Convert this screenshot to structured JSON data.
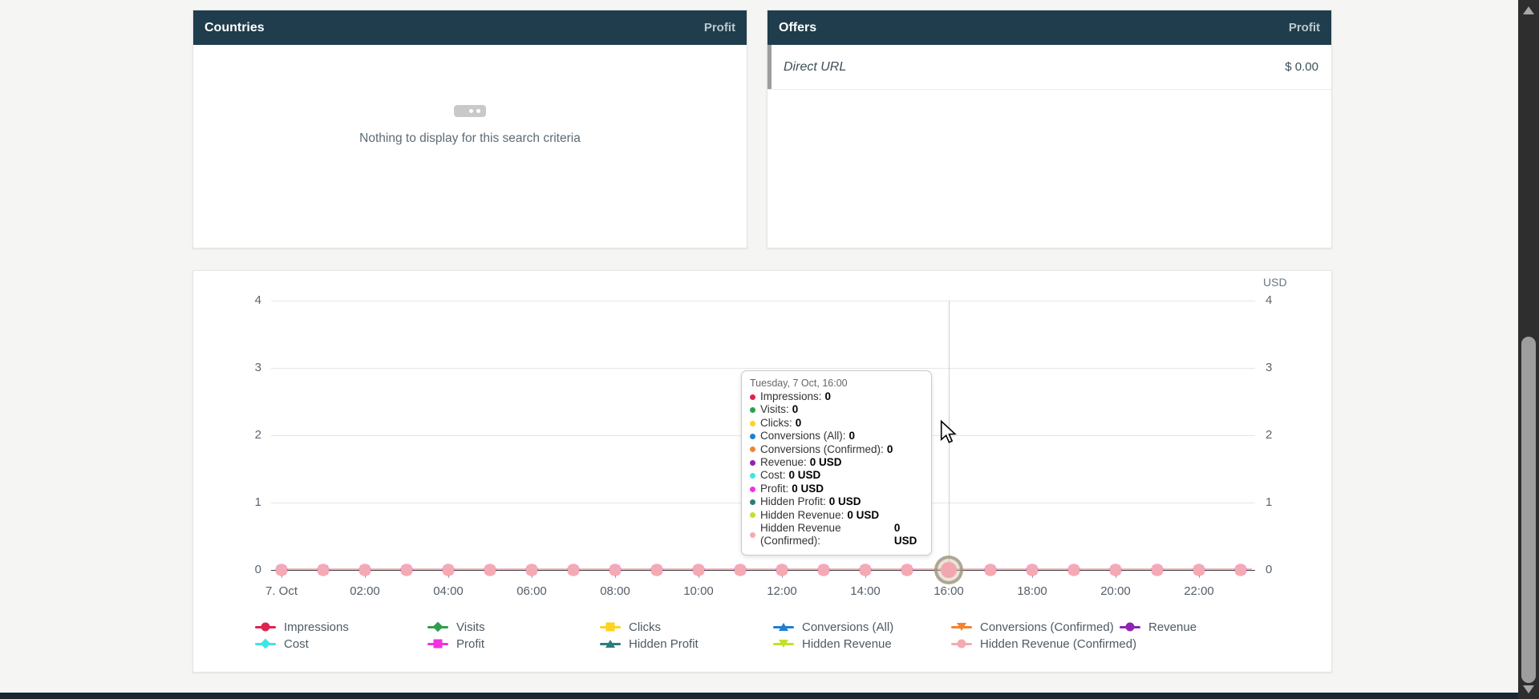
{
  "app": {
    "page_bg": "#f5f5f4",
    "panel_header_bg": "#1f3d4c",
    "bottom_bar_color": "#1c2531"
  },
  "countries_panel": {
    "title": "Countries",
    "metric_label": "Profit",
    "empty_message": "Nothing to display for this search criteria"
  },
  "offers_panel": {
    "title": "Offers",
    "metric_label": "Profit",
    "rows": [
      {
        "name": "Direct URL",
        "value": "$ 0.00"
      }
    ]
  },
  "tooltip": {
    "title": "Tuesday, 7 Oct, 16:00",
    "items": [
      {
        "label": "Impressions",
        "value": "0"
      },
      {
        "label": "Visits",
        "value": "0"
      },
      {
        "label": "Clicks",
        "value": "0"
      },
      {
        "label": "Conversions (All)",
        "value": "0"
      },
      {
        "label": "Conversions (Confirmed)",
        "value": "0"
      },
      {
        "label": "Revenue",
        "value": "0 USD"
      },
      {
        "label": "Cost",
        "value": "0 USD"
      },
      {
        "label": "Profit",
        "value": "0 USD"
      },
      {
        "label": "Hidden Profit",
        "value": "0 USD"
      },
      {
        "label": "Hidden Revenue",
        "value": "0 USD"
      },
      {
        "label": "Hidden Revenue (Confirmed)",
        "value": "0 USD"
      }
    ]
  },
  "chart_data": {
    "type": "line",
    "title": "",
    "unit_label": "USD",
    "xlabel": "",
    "ylabel": "",
    "ylim": [
      0,
      4
    ],
    "y_ticks": [
      4,
      3,
      2,
      1,
      0
    ],
    "grid": true,
    "legend_position": "bottom",
    "x_tick_labels": [
      "7. Oct",
      "02:00",
      "04:00",
      "06:00",
      "08:00",
      "10:00",
      "12:00",
      "14:00",
      "16:00",
      "18:00",
      "20:00",
      "22:00"
    ],
    "x_points": [
      "00:00",
      "01:00",
      "02:00",
      "03:00",
      "04:00",
      "05:00",
      "06:00",
      "07:00",
      "08:00",
      "09:00",
      "10:00",
      "11:00",
      "12:00",
      "13:00",
      "14:00",
      "15:00",
      "16:00",
      "17:00",
      "18:00",
      "19:00",
      "20:00",
      "21:00",
      "22:00",
      "23:00"
    ],
    "hover_point": {
      "index": 16,
      "label": "16:00",
      "date": "Tuesday, 7 Oct"
    },
    "series": [
      {
        "name": "Impressions",
        "color": "#e0234e",
        "marker": "circle",
        "values": [
          0,
          0,
          0,
          0,
          0,
          0,
          0,
          0,
          0,
          0,
          0,
          0,
          0,
          0,
          0,
          0,
          0,
          0,
          0,
          0,
          0,
          0,
          0,
          0
        ]
      },
      {
        "name": "Visits",
        "color": "#2f9e4f",
        "marker": "diamond",
        "values": [
          0,
          0,
          0,
          0,
          0,
          0,
          0,
          0,
          0,
          0,
          0,
          0,
          0,
          0,
          0,
          0,
          0,
          0,
          0,
          0,
          0,
          0,
          0,
          0
        ]
      },
      {
        "name": "Clicks",
        "color": "#ffd21e",
        "marker": "square",
        "values": [
          0,
          0,
          0,
          0,
          0,
          0,
          0,
          0,
          0,
          0,
          0,
          0,
          0,
          0,
          0,
          0,
          0,
          0,
          0,
          0,
          0,
          0,
          0,
          0
        ]
      },
      {
        "name": "Conversions (All)",
        "color": "#1e7fd4",
        "marker": "triangle-up",
        "values": [
          0,
          0,
          0,
          0,
          0,
          0,
          0,
          0,
          0,
          0,
          0,
          0,
          0,
          0,
          0,
          0,
          0,
          0,
          0,
          0,
          0,
          0,
          0,
          0
        ]
      },
      {
        "name": "Conversions (Confirmed)",
        "color": "#f58231",
        "marker": "triangle-down",
        "values": [
          0,
          0,
          0,
          0,
          0,
          0,
          0,
          0,
          0,
          0,
          0,
          0,
          0,
          0,
          0,
          0,
          0,
          0,
          0,
          0,
          0,
          0,
          0,
          0
        ]
      },
      {
        "name": "Revenue",
        "color": "#8f23b3",
        "marker": "circle",
        "values": [
          0,
          0,
          0,
          0,
          0,
          0,
          0,
          0,
          0,
          0,
          0,
          0,
          0,
          0,
          0,
          0,
          0,
          0,
          0,
          0,
          0,
          0,
          0,
          0
        ]
      },
      {
        "name": "Cost",
        "color": "#3ee6e0",
        "marker": "diamond",
        "values": [
          0,
          0,
          0,
          0,
          0,
          0,
          0,
          0,
          0,
          0,
          0,
          0,
          0,
          0,
          0,
          0,
          0,
          0,
          0,
          0,
          0,
          0,
          0,
          0
        ]
      },
      {
        "name": "Profit",
        "color": "#f032e0",
        "marker": "square",
        "values": [
          0,
          0,
          0,
          0,
          0,
          0,
          0,
          0,
          0,
          0,
          0,
          0,
          0,
          0,
          0,
          0,
          0,
          0,
          0,
          0,
          0,
          0,
          0,
          0
        ]
      },
      {
        "name": "Hidden Profit",
        "color": "#2a7d7d",
        "marker": "triangle-up",
        "values": [
          0,
          0,
          0,
          0,
          0,
          0,
          0,
          0,
          0,
          0,
          0,
          0,
          0,
          0,
          0,
          0,
          0,
          0,
          0,
          0,
          0,
          0,
          0,
          0
        ]
      },
      {
        "name": "Hidden Revenue",
        "color": "#c3e02e",
        "marker": "triangle-down",
        "values": [
          0,
          0,
          0,
          0,
          0,
          0,
          0,
          0,
          0,
          0,
          0,
          0,
          0,
          0,
          0,
          0,
          0,
          0,
          0,
          0,
          0,
          0,
          0,
          0
        ]
      },
      {
        "name": "Hidden Revenue (Confirmed)",
        "color": "#f4aab3",
        "marker": "circle",
        "values": [
          0,
          0,
          0,
          0,
          0,
          0,
          0,
          0,
          0,
          0,
          0,
          0,
          0,
          0,
          0,
          0,
          0,
          0,
          0,
          0,
          0,
          0,
          0,
          0
        ]
      }
    ],
    "legend_rows": [
      [
        0,
        1,
        2,
        3,
        4,
        5
      ],
      [
        6,
        7,
        8,
        9,
        10
      ]
    ]
  }
}
